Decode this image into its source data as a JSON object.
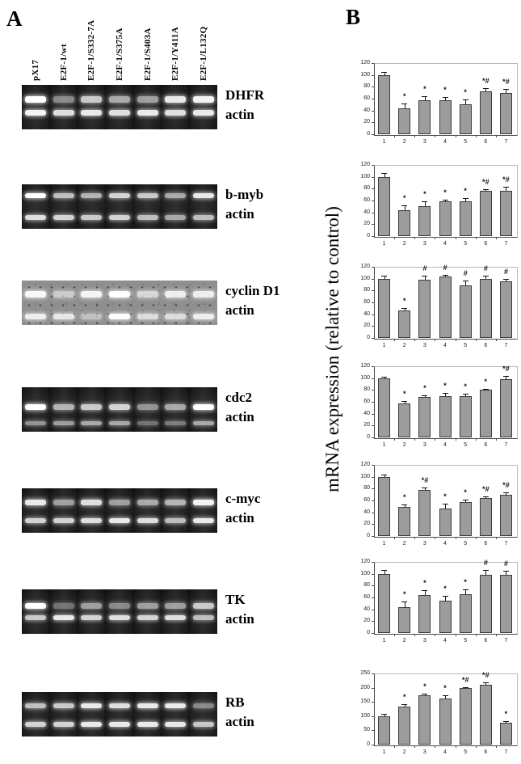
{
  "panel_a": {
    "label": "A",
    "lane_labels": [
      "pX17",
      "E2F-1/wt",
      "E2F-1/S332-7A",
      "E2F-1/S375A",
      "E2F-1/S403A",
      "E2F-1/Y411A",
      "E2F-1/L132Q"
    ],
    "gels": [
      {
        "gene": "DHFR",
        "control": "actin",
        "style": "dark",
        "band_y": [
          0.33,
          0.63
        ],
        "band_h": [
          8,
          7
        ],
        "top_bands": [
          1.0,
          0.45,
          0.75,
          0.6,
          0.55,
          0.9,
          0.95
        ],
        "bottom_bands": [
          0.95,
          0.85,
          0.9,
          0.85,
          0.9,
          0.85,
          0.9
        ]
      },
      {
        "gene": "b-myb",
        "control": "actin",
        "style": "dark",
        "band_y": [
          0.25,
          0.74
        ],
        "band_h": [
          6,
          6
        ],
        "top_bands": [
          1.0,
          0.7,
          0.65,
          0.8,
          0.75,
          0.6,
          0.9
        ],
        "bottom_bands": [
          0.85,
          0.8,
          0.75,
          0.8,
          0.7,
          0.6,
          0.7
        ]
      },
      {
        "gene": "cyclin D1",
        "control": "actin",
        "style": "light",
        "band_y": [
          0.3,
          0.8
        ],
        "band_h": [
          8,
          7
        ],
        "top_bands": [
          0.95,
          0.55,
          0.9,
          1.0,
          0.65,
          0.85,
          0.85
        ],
        "bottom_bands": [
          0.85,
          0.8,
          0.45,
          1.0,
          0.7,
          0.7,
          0.85
        ]
      },
      {
        "gene": "cdc2",
        "control": "actin",
        "style": "dark",
        "band_y": [
          0.44,
          0.8
        ],
        "band_h": [
          7,
          5
        ],
        "top_bands": [
          1.0,
          0.65,
          0.75,
          0.8,
          0.5,
          0.6,
          1.0
        ],
        "bottom_bands": [
          0.5,
          0.55,
          0.6,
          0.6,
          0.35,
          0.4,
          0.6
        ]
      },
      {
        "gene": "c-myc",
        "control": "actin",
        "style": "dark",
        "band_y": [
          0.32,
          0.73
        ],
        "band_h": [
          7,
          6
        ],
        "top_bands": [
          0.9,
          0.55,
          0.85,
          0.55,
          0.6,
          0.65,
          0.95
        ],
        "bottom_bands": [
          0.8,
          0.8,
          0.85,
          0.9,
          0.85,
          0.7,
          0.9
        ]
      },
      {
        "gene": "TK",
        "control": "actin",
        "style": "dark",
        "band_y": [
          0.38,
          0.64
        ],
        "band_h": [
          7,
          6
        ],
        "top_bands": [
          1.0,
          0.35,
          0.55,
          0.45,
          0.55,
          0.55,
          0.75
        ],
        "bottom_bands": [
          0.75,
          0.9,
          0.8,
          0.85,
          0.8,
          0.85,
          0.7
        ]
      },
      {
        "gene": "RB",
        "control": "actin",
        "style": "dark",
        "band_y": [
          0.3,
          0.72
        ],
        "band_h": [
          6,
          6
        ],
        "top_bands": [
          0.7,
          0.75,
          0.9,
          0.85,
          0.9,
          0.9,
          0.45
        ],
        "bottom_bands": [
          0.8,
          0.8,
          0.9,
          0.9,
          0.9,
          0.9,
          0.75
        ]
      }
    ]
  },
  "panel_b": {
    "label": "B",
    "y_axis_title": "mRNA expression (relative to control)"
  },
  "chart_data": [
    {
      "type": "bar",
      "categories": [
        "1",
        "2",
        "3",
        "4",
        "5",
        "6",
        "7"
      ],
      "values": [
        100,
        44,
        57,
        57,
        51,
        72,
        70
      ],
      "errors": [
        5,
        8,
        7,
        6,
        8,
        6,
        7
      ],
      "annotations": [
        "",
        "*",
        "*",
        "*",
        "*",
        "*#",
        "*#"
      ],
      "ylim": [
        0,
        120
      ],
      "ytick_step": 20,
      "ylabel": "mRNA expression (relative to control)",
      "grid": false,
      "legend": "none",
      "bar_color": "#9c9c9c"
    },
    {
      "type": "bar",
      "categories": [
        "1",
        "2",
        "3",
        "4",
        "5",
        "6",
        "7"
      ],
      "values": [
        100,
        44,
        51,
        59,
        59,
        77,
        77
      ],
      "errors": [
        6,
        8,
        7,
        2,
        5,
        2,
        6
      ],
      "annotations": [
        "",
        "*",
        "*",
        "*",
        "*",
        "*#",
        "*#"
      ],
      "ylim": [
        0,
        120
      ],
      "ytick_step": 20,
      "ylabel": "mRNA expression (relative to control)",
      "grid": false,
      "legend": "none",
      "bar_color": "#9c9c9c"
    },
    {
      "type": "bar",
      "categories": [
        "1",
        "2",
        "3",
        "4",
        "5",
        "6",
        "7"
      ],
      "values": [
        100,
        46,
        98,
        104,
        89,
        100,
        95
      ],
      "errors": [
        5,
        4,
        7,
        3,
        8,
        5,
        4
      ],
      "annotations": [
        "",
        "*",
        "#",
        "#",
        "#",
        "#",
        "#"
      ],
      "ylim": [
        0,
        120
      ],
      "ytick_step": 20,
      "ylabel": "mRNA expression (relative to control)",
      "grid": false,
      "legend": "none",
      "bar_color": "#9c9c9c"
    },
    {
      "type": "bar",
      "categories": [
        "1",
        "2",
        "3",
        "4",
        "5",
        "6",
        "7"
      ],
      "values": [
        100,
        57,
        68,
        70,
        70,
        80,
        98
      ],
      "errors": [
        2,
        5,
        3,
        5,
        4,
        2,
        6
      ],
      "annotations": [
        "",
        "*",
        "*",
        "*",
        "*",
        "*",
        "*#"
      ],
      "ylim": [
        0,
        120
      ],
      "ytick_step": 20,
      "ylabel": "mRNA expression (relative to control)",
      "grid": false,
      "legend": "none",
      "bar_color": "#9c9c9c"
    },
    {
      "type": "bar",
      "categories": [
        "1",
        "2",
        "3",
        "4",
        "5",
        "6",
        "7"
      ],
      "values": [
        100,
        49,
        78,
        47,
        57,
        64,
        70
      ],
      "errors": [
        3,
        4,
        4,
        7,
        4,
        3,
        3
      ],
      "annotations": [
        "",
        "*",
        "*#",
        "*",
        "*",
        "*#",
        "*#"
      ],
      "ylim": [
        0,
        120
      ],
      "ytick_step": 20,
      "ylabel": "mRNA expression (relative to control)",
      "grid": false,
      "legend": "none",
      "bar_color": "#9c9c9c"
    },
    {
      "type": "bar",
      "categories": [
        "1",
        "2",
        "3",
        "4",
        "5",
        "6",
        "7"
      ],
      "values": [
        100,
        43,
        64,
        54,
        66,
        98,
        98
      ],
      "errors": [
        6,
        10,
        8,
        9,
        8,
        8,
        7
      ],
      "annotations": [
        "",
        "*",
        "*",
        "*",
        "*",
        "#",
        "#"
      ],
      "ylim": [
        0,
        120
      ],
      "ytick_step": 20,
      "ylabel": "mRNA expression (relative to control)",
      "grid": false,
      "legend": "none",
      "bar_color": "#9c9c9c"
    },
    {
      "type": "bar",
      "categories": [
        "1",
        "2",
        "3",
        "4",
        "5",
        "6",
        "7"
      ],
      "values": [
        100,
        133,
        173,
        163,
        198,
        210,
        78
      ],
      "errors": [
        7,
        8,
        5,
        10,
        5,
        10,
        5
      ],
      "annotations": [
        "",
        "*",
        "*",
        "*",
        "*#",
        "*#",
        "*"
      ],
      "ylim": [
        0,
        250
      ],
      "ytick_step": 50,
      "ylabel": "mRNA expression (relative to control)",
      "grid": false,
      "legend": "none",
      "bar_color": "#9c9c9c"
    }
  ]
}
